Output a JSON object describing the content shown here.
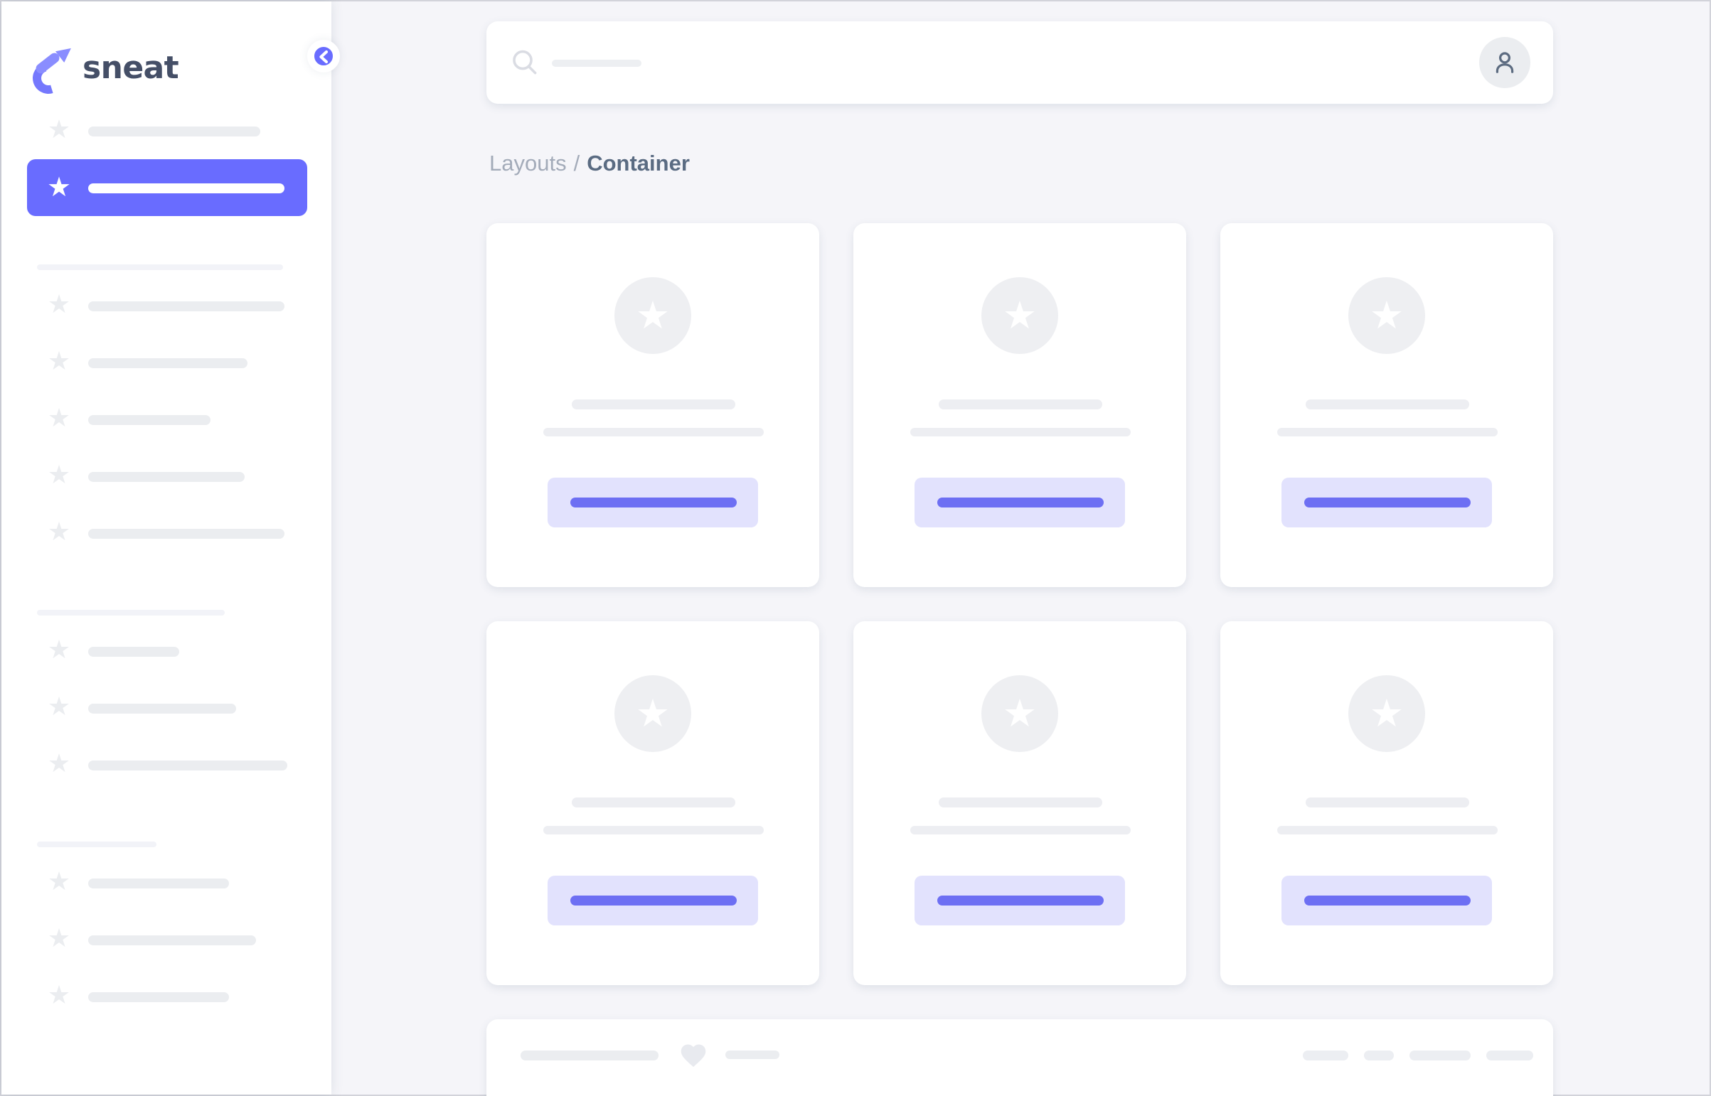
{
  "app": {
    "name": "sneat"
  },
  "colors": {
    "primary": "#696CFF",
    "primary_soft": "#E2E2FD",
    "background": "#F5F5F9",
    "surface": "#FFFFFF",
    "skeleton": "#EBEDF0",
    "skeleton_light": "#F2F3F8",
    "heading": "#454F67",
    "breadcrumb_muted": "#A3ABB9",
    "breadcrumb_active": "#5A6B82"
  },
  "sidebar": {
    "logo_text": "sneat",
    "collapse_button_icon": "chevron-left-icon",
    "menu": {
      "top_item_bar_width": 121,
      "active_item_bar_width": 138,
      "sections": [
        {
          "label_bar_width": 173,
          "item_bar_widths": [
            138,
            112,
            86,
            110,
            138
          ]
        },
        {
          "label_bar_width": 132,
          "item_bar_widths": [
            64,
            104,
            140
          ]
        },
        {
          "label_bar_width": 84,
          "item_bar_widths": [
            99,
            118,
            99
          ]
        }
      ]
    }
  },
  "topbar": {
    "search_icon": "magnifier-icon",
    "search_placeholder_bar_width": 63,
    "avatar_icon": "person-icon"
  },
  "breadcrumb": {
    "parent": "Layouts",
    "separator": "/",
    "current": "Container"
  },
  "content": {
    "cards": {
      "count": 6,
      "columns": 3,
      "icon": "star-icon",
      "line_widths": [
        115,
        155
      ],
      "button_bar_width": 117
    }
  },
  "footer_card": {
    "icon": "heart-icon",
    "bar_widths": [
      97,
      38
    ],
    "pager_pill_widths": [
      32,
      21,
      43,
      33
    ]
  }
}
